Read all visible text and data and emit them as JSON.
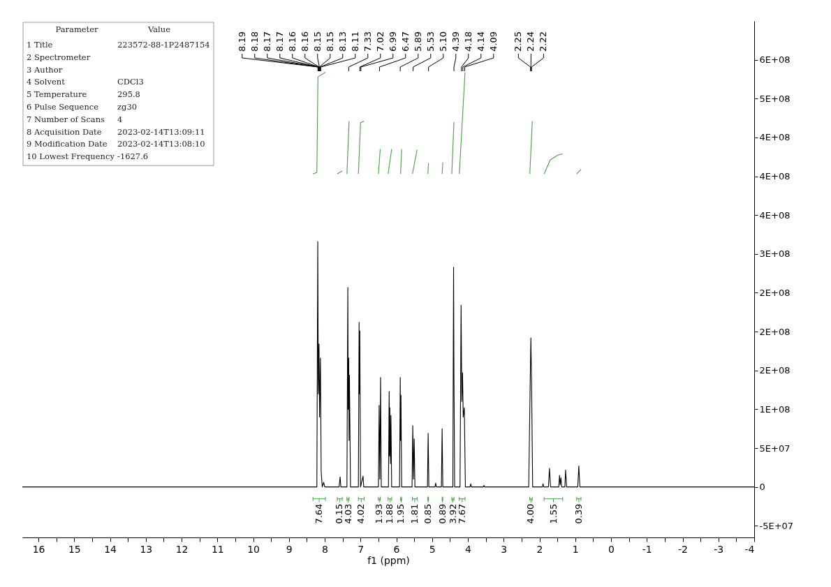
{
  "chart_data": {
    "type": "line",
    "xlabel": "f1 (ppm)",
    "xlim": [
      16.45,
      -4
    ],
    "xticks": [
      16,
      {
        "value": 15.5,
        "label": null
      },
      15,
      {
        "value": 14.5,
        "label": null
      },
      14,
      {
        "value": 13.5,
        "label": null
      },
      13,
      {
        "value": 12.5,
        "label": null
      },
      12,
      {
        "value": 11.5,
        "label": null
      },
      11,
      {
        "value": 10.5,
        "label": null
      },
      10,
      {
        "value": 9.5,
        "label": null
      },
      9,
      {
        "value": 8.5,
        "label": null
      },
      8,
      {
        "value": 7.5,
        "label": null
      },
      7,
      {
        "value": 6.5,
        "label": null
      },
      6,
      {
        "value": 5.5,
        "label": null
      },
      5,
      {
        "value": 4.5,
        "label": null
      },
      4,
      {
        "value": 3.5,
        "label": null
      },
      3,
      {
        "value": 2.5,
        "label": null
      },
      2,
      {
        "value": 1.5,
        "label": null
      },
      1,
      {
        "value": 0.5,
        "label": null
      },
      0,
      {
        "value": -0.5,
        "label": null
      },
      -1,
      {
        "value": -1.5,
        "label": null
      },
      -2,
      {
        "value": -2.5,
        "label": null
      },
      -3,
      {
        "value": -3.5,
        "label": null
      },
      -4
    ],
    "ylim": [
      -65000000,
      600000000
    ],
    "yticks": [
      {
        "value": -50000000,
        "label": "-5E+07"
      },
      0,
      {
        "value": 50000000,
        "label": "5E+07"
      },
      {
        "value": 100000000,
        "label": "1E+08"
      },
      {
        "value": 150000000,
        "label": "2E+08"
      },
      {
        "value": 200000000,
        "label": "2E+08"
      },
      {
        "value": 250000000,
        "label": "2E+08"
      },
      {
        "value": 300000000,
        "label": "3E+08"
      },
      {
        "value": 350000000,
        "label": "4E+08"
      },
      {
        "value": 400000000,
        "label": "4E+08"
      },
      {
        "value": 450000000,
        "label": "4E+08"
      },
      {
        "value": 500000000,
        "label": "5E+08"
      },
      {
        "value": 550000000,
        "label": "6E+08"
      }
    ],
    "grid": false,
    "series": [
      {
        "color": "#000000",
        "x": [
          16.45,
          9.0,
          8.22,
          8.195,
          8.18,
          8.16,
          8.145,
          8.12,
          8.1,
          8.07,
          8.03,
          8.0,
          7.6,
          7.57,
          7.55,
          7.38,
          7.355,
          7.345,
          7.33,
          7.32,
          7.31,
          7.28,
          7.06,
          7.04,
          7.03,
          7.02,
          7.0,
          6.93,
          6.91,
          6.5,
          6.48,
          6.46,
          6.44,
          6.42,
          6.22,
          6.2,
          6.19,
          6.18,
          6.165,
          6.15,
          6.13,
          5.91,
          5.89,
          5.88,
          5.87,
          5.85,
          5.56,
          5.54,
          5.52,
          5.5,
          5.48,
          5.13,
          5.11,
          5.09,
          4.92,
          4.9,
          4.88,
          4.74,
          4.72,
          4.7,
          4.42,
          4.41,
          4.4,
          4.39,
          4.37,
          4.22,
          4.19,
          4.17,
          4.15,
          4.13,
          4.1,
          4.07,
          3.94,
          3.92,
          3.9,
          3.57,
          3.55,
          3.53,
          2.3,
          2.26,
          2.24,
          2.22,
          2.19,
          1.92,
          1.9,
          1.88,
          1.75,
          1.72,
          1.69,
          1.46,
          1.44,
          1.42,
          1.4,
          1.38,
          1.29,
          1.27,
          1.24,
          0.93,
          0.9,
          0.87,
          -4
        ],
        "values": [
          0,
          0,
          0,
          316000000,
          120000000,
          184000000,
          90000000,
          166000000,
          20000000,
          0,
          6000000,
          0,
          0,
          13000000,
          0,
          0,
          257000000,
          100000000,
          166000000,
          60000000,
          144000000,
          0,
          0,
          212000000,
          120000000,
          201000000,
          0,
          14000000,
          0,
          0,
          105000000,
          10000000,
          141000000,
          0,
          0,
          123000000,
          40000000,
          102000000,
          30000000,
          92000000,
          0,
          0,
          141000000,
          60000000,
          118000000,
          0,
          0,
          79000000,
          10000000,
          62000000,
          0,
          0,
          69000000,
          0,
          0,
          5000000,
          0,
          0,
          75000000,
          0,
          0,
          150000000,
          283000000,
          150000000,
          0,
          0,
          234000000,
          110000000,
          147000000,
          90000000,
          102000000,
          0,
          0,
          4000000,
          0,
          0,
          2000000,
          0,
          0,
          132000000,
          192000000,
          132000000,
          0,
          0,
          4000000,
          0,
          0,
          24000000,
          0,
          0,
          15000000,
          3000000,
          12000000,
          0,
          0,
          22000000,
          0,
          0,
          27000000,
          0,
          0
        ]
      },
      {
        "color": "#4a9e4a",
        "x": [
          8.33,
          8.22,
          8.19,
          7.98,
          7.8,
          7.65,
          7.51,
          7.45,
          7.38,
          7.32,
          7.2,
          7.06,
          7.0,
          6.9,
          6.7,
          6.5,
          6.45,
          6.35,
          6.23,
          6.13,
          6.0,
          5.88,
          5.85,
          5.7,
          5.55,
          5.42,
          5.3,
          5.12,
          5.1,
          4.9,
          4.72,
          4.7,
          4.6,
          4.45,
          4.39,
          4.3,
          4.24,
          4.08,
          3.2,
          2.27,
          2.2,
          2.0,
          1.87,
          1.7,
          1.5,
          1.35,
          1.1,
          0.96,
          0.84
        ],
        "values": [
          403000000,
          405000000,
          528000000,
          534000000,
          null,
          403000000,
          407000000,
          null,
          403000000,
          471000000,
          null,
          403000000,
          469000000,
          471000000,
          null,
          403000000,
          435000000,
          null,
          403000000,
          435000000,
          null,
          403000000,
          435000000,
          null,
          403000000,
          434000000,
          null,
          403000000,
          417000000,
          null,
          403000000,
          418000000,
          null,
          403000000,
          470000000,
          null,
          403000000,
          534000000,
          null,
          403000000,
          471000000,
          null,
          403000000,
          421000000,
          427000000,
          429000000,
          null,
          403000000,
          409000000
        ]
      }
    ],
    "annotations": [
      {
        "text": "8.19",
        "x": 8.19
      },
      {
        "text": "8.18",
        "x": 8.18
      },
      {
        "text": "8.17",
        "x": 8.17
      },
      {
        "text": "8.17",
        "x": 8.17
      },
      {
        "text": "8.16",
        "x": 8.16
      },
      {
        "text": "8.16",
        "x": 8.16
      },
      {
        "text": "8.15",
        "x": 8.15
      },
      {
        "text": "8.15",
        "x": 8.15
      },
      {
        "text": "8.13",
        "x": 8.13
      },
      {
        "text": "8.11",
        "x": 8.11
      },
      {
        "text": "7.33",
        "x": 7.33
      },
      {
        "text": "7.02",
        "x": 7.02
      },
      {
        "text": "6.99",
        "x": 6.99
      },
      {
        "text": "6.47",
        "x": 6.47
      },
      {
        "text": "5.89",
        "x": 5.89
      },
      {
        "text": "5.53",
        "x": 5.53
      },
      {
        "text": "5.10",
        "x": 5.1
      },
      {
        "text": "4.39",
        "x": 4.39
      },
      {
        "text": "4.18",
        "x": 4.18
      },
      {
        "text": "4.14",
        "x": 4.14
      },
      {
        "text": "4.09",
        "x": 4.09
      },
      {
        "text": "2.25",
        "x": 2.25
      },
      {
        "text": "2.24",
        "x": 2.24
      },
      {
        "text": "2.22",
        "x": 2.22
      },
      "7.64",
      "0.15",
      "4.03",
      "4.02",
      "1.93",
      "1.88",
      "1.95",
      "1.81",
      "0.85",
      "0.89",
      "3.92",
      "7.67",
      "4.00",
      "1.55",
      "0.39",
      "Parameter",
      "Value",
      "1 Title",
      "223572-88-1P2487154",
      "2 Spectrometer",
      null,
      "3 Author",
      null,
      "4 Solvent",
      "CDCl3",
      "5 Temperature",
      "295.8",
      "6 Pulse Sequence",
      "zg30",
      "7 Number of Scans",
      "4",
      "8 Acquisition Date",
      "2023-02-14T13:09:11",
      "9 Modification Date",
      "2023-02-14T13:08:10",
      "10 Lowest Frequency",
      "-1627.6"
    ]
  }
}
